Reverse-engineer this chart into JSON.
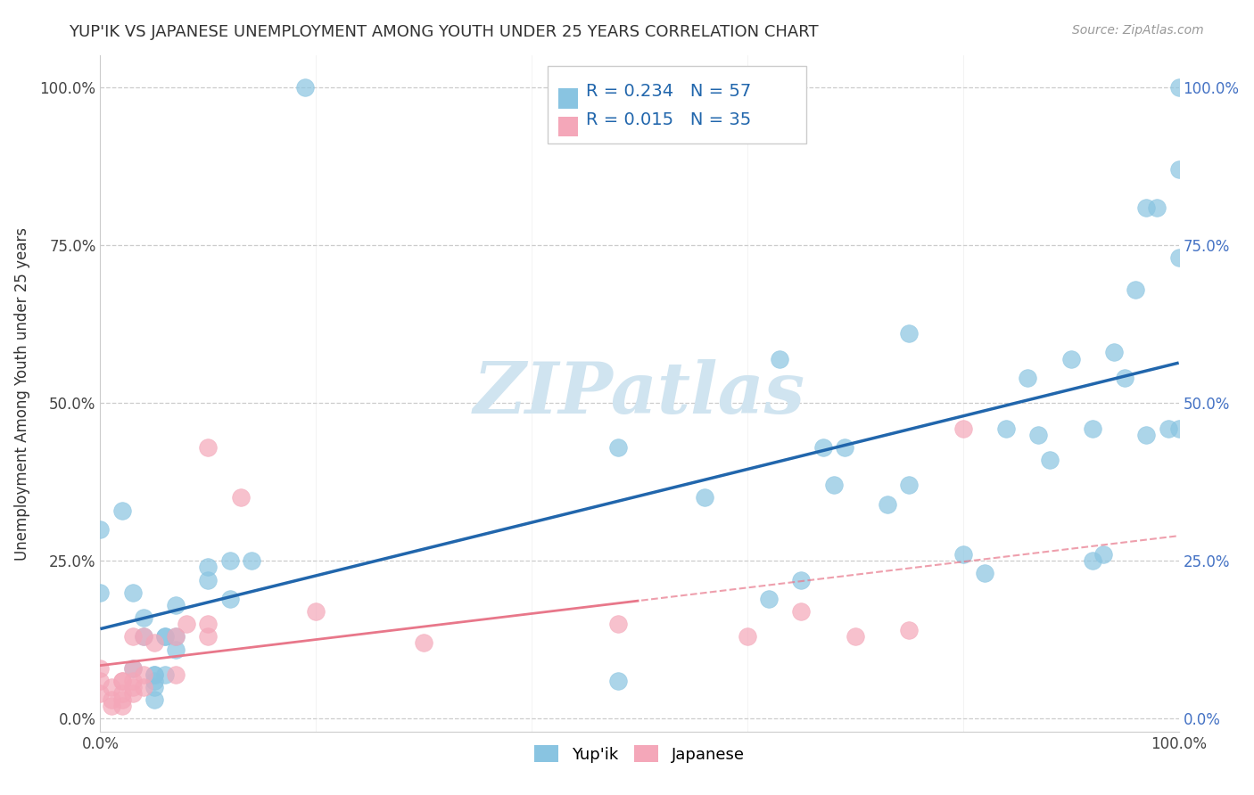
{
  "title": "YUP'IK VS JAPANESE UNEMPLOYMENT AMONG YOUTH UNDER 25 YEARS CORRELATION CHART",
  "source": "Source: ZipAtlas.com",
  "ylabel": "Unemployment Among Youth under 25 years",
  "xlim": [
    0,
    1
  ],
  "ylim": [
    -0.02,
    1.05
  ],
  "ytick_labels": [
    "0.0%",
    "25.0%",
    "50.0%",
    "75.0%",
    "100.0%"
  ],
  "ytick_values": [
    0.0,
    0.25,
    0.5,
    0.75,
    1.0
  ],
  "xtick_labels": [
    "0.0%",
    "100.0%"
  ],
  "xtick_positions": [
    0.0,
    1.0
  ],
  "blue_color": "#89C4E1",
  "pink_color": "#F4A7B9",
  "blue_line_color": "#2166ac",
  "pink_line_color": "#e8778a",
  "grid_color": "#cccccc",
  "R_yupik": 0.234,
  "N_yupik": 57,
  "R_japanese": 0.015,
  "N_japanese": 35,
  "watermark": "ZIPatlas",
  "watermark_color": "#d0e4f0",
  "yupik_x": [
    0.0,
    0.0,
    0.02,
    0.03,
    0.03,
    0.04,
    0.04,
    0.05,
    0.05,
    0.05,
    0.05,
    0.05,
    0.06,
    0.06,
    0.06,
    0.07,
    0.07,
    0.07,
    0.1,
    0.1,
    0.12,
    0.12,
    0.14,
    0.19,
    0.48,
    0.48,
    0.56,
    0.62,
    0.63,
    0.65,
    0.67,
    0.68,
    0.69,
    0.73,
    0.75,
    0.75,
    0.8,
    0.82,
    0.84,
    0.86,
    0.87,
    0.88,
    0.9,
    0.92,
    0.92,
    0.93,
    0.94,
    0.95,
    0.96,
    0.97,
    0.97,
    0.98,
    0.99,
    1.0,
    1.0,
    1.0,
    1.0
  ],
  "yupik_y": [
    0.2,
    0.3,
    0.33,
    0.08,
    0.2,
    0.13,
    0.16,
    0.03,
    0.05,
    0.06,
    0.07,
    0.07,
    0.07,
    0.13,
    0.13,
    0.11,
    0.13,
    0.18,
    0.22,
    0.24,
    0.19,
    0.25,
    0.25,
    1.0,
    0.43,
    0.06,
    0.35,
    0.19,
    0.57,
    0.22,
    0.43,
    0.37,
    0.43,
    0.34,
    0.37,
    0.61,
    0.26,
    0.23,
    0.46,
    0.54,
    0.45,
    0.41,
    0.57,
    0.25,
    0.46,
    0.26,
    0.58,
    0.54,
    0.68,
    0.45,
    0.81,
    0.81,
    0.46,
    0.87,
    1.0,
    0.73,
    0.46
  ],
  "japanese_x": [
    0.0,
    0.0,
    0.0,
    0.01,
    0.01,
    0.01,
    0.02,
    0.02,
    0.02,
    0.02,
    0.02,
    0.03,
    0.03,
    0.03,
    0.03,
    0.03,
    0.04,
    0.04,
    0.04,
    0.05,
    0.07,
    0.07,
    0.08,
    0.1,
    0.1,
    0.1,
    0.13,
    0.2,
    0.3,
    0.48,
    0.6,
    0.65,
    0.7,
    0.75,
    0.8
  ],
  "japanese_y": [
    0.04,
    0.06,
    0.08,
    0.02,
    0.03,
    0.05,
    0.02,
    0.03,
    0.04,
    0.06,
    0.06,
    0.04,
    0.05,
    0.06,
    0.08,
    0.13,
    0.05,
    0.07,
    0.13,
    0.12,
    0.07,
    0.13,
    0.15,
    0.13,
    0.15,
    0.43,
    0.35,
    0.17,
    0.12,
    0.15,
    0.13,
    0.17,
    0.13,
    0.14,
    0.46
  ]
}
